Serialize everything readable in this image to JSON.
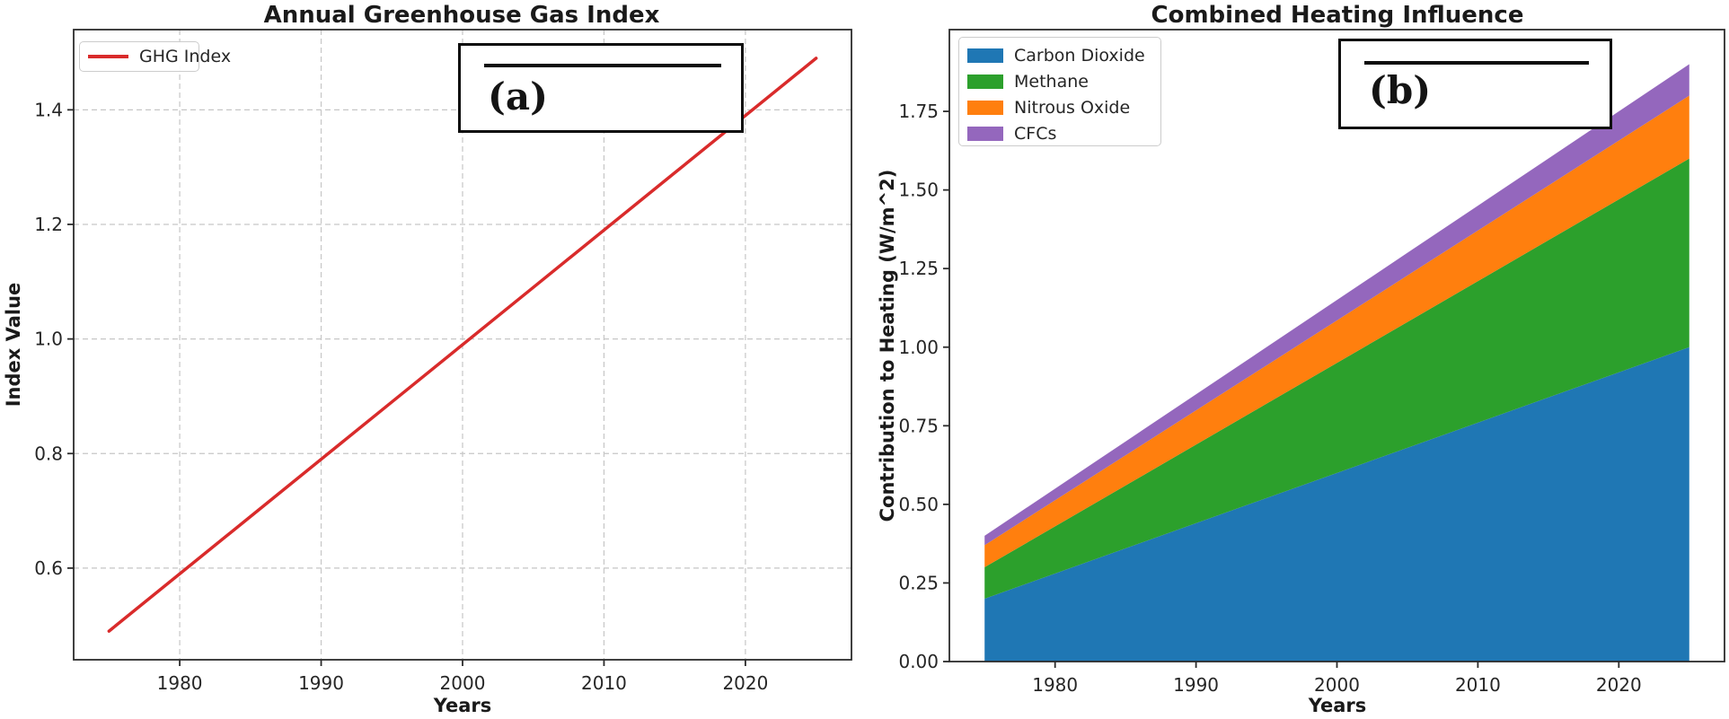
{
  "figure": {
    "background": "#ffffff",
    "panels": [
      "Annual Greenhouse Gas Index",
      "Combined Heating Influence"
    ]
  },
  "chart_data": [
    {
      "type": "line",
      "panel_label": "a",
      "annotation": "(a)",
      "title": "Annual Greenhouse Gas Index",
      "xlabel": "Years",
      "ylabel": "Index Value",
      "grid": true,
      "legend_position": "upper left",
      "xlim": [
        1972.5,
        2027.5
      ],
      "ylim": [
        0.44,
        1.54
      ],
      "xticks": [
        "1980",
        "1990",
        "2000",
        "2010",
        "2020"
      ],
      "yticks": [
        "0.6",
        "0.8",
        "1.0",
        "1.2",
        "1.4"
      ],
      "series": [
        {
          "name": "GHG Index",
          "color": "#d92b2b",
          "x": [
            1975,
            1985,
            1995,
            2005,
            2015,
            2025
          ],
          "y": [
            0.49,
            0.69,
            0.89,
            1.09,
            1.29,
            1.49
          ]
        }
      ]
    },
    {
      "type": "area",
      "panel_label": "b",
      "annotation": "(b)",
      "title": "Combined Heating Influence",
      "xlabel": "Years",
      "ylabel": "Contribution to Heating (W/m^2)",
      "grid": false,
      "legend_position": "upper left",
      "stacked": true,
      "xlim": [
        1972.5,
        2027.5
      ],
      "ylim": [
        0,
        2.01
      ],
      "xticks": [
        "1980",
        "1990",
        "2000",
        "2010",
        "2020"
      ],
      "yticks": [
        "0.00",
        "0.25",
        "0.50",
        "0.75",
        "1.00",
        "1.25",
        "1.50",
        "1.75"
      ],
      "x": [
        1975,
        1985,
        1995,
        2005,
        2015,
        2025
      ],
      "series": [
        {
          "name": "Carbon Dioxide",
          "color": "#1f77b4",
          "values": [
            0.2,
            0.36,
            0.52,
            0.68,
            0.84,
            1.0
          ]
        },
        {
          "name": "Methane",
          "color": "#2ca02c",
          "values": [
            0.1,
            0.2,
            0.3,
            0.4,
            0.5,
            0.6
          ]
        },
        {
          "name": "Nitrous Oxide",
          "color": "#ff7f0e",
          "values": [
            0.07,
            0.096,
            0.122,
            0.148,
            0.174,
            0.2
          ]
        },
        {
          "name": "CFCs",
          "color": "#9467bd",
          "values": [
            0.03,
            0.044,
            0.058,
            0.072,
            0.086,
            0.1
          ]
        }
      ]
    }
  ]
}
